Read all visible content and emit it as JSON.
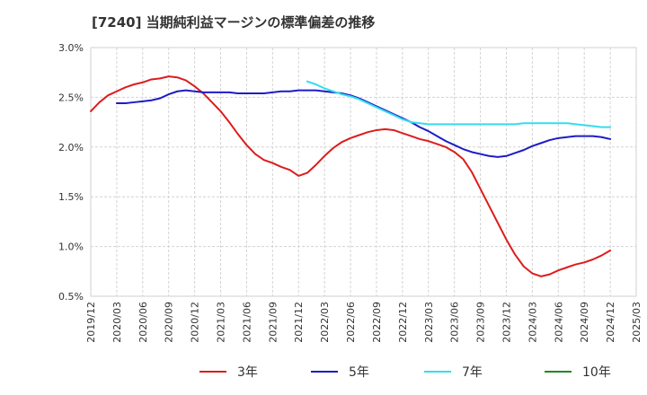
{
  "chart_data": {
    "type": "line",
    "title": "[7240]  当期純利益マージンの標準偏差の推移",
    "xlabel": "",
    "ylabel": "",
    "ylim": [
      0.5,
      3.0
    ],
    "y_ticks": [
      "0.5%",
      "1.0%",
      "1.5%",
      "2.0%",
      "2.5%",
      "3.0%"
    ],
    "y_tick_values": [
      0.5,
      1.0,
      1.5,
      2.0,
      2.5,
      3.0
    ],
    "x_ticks": [
      "2019/12",
      "2020/03",
      "2020/06",
      "2020/09",
      "2020/12",
      "2021/03",
      "2021/06",
      "2021/09",
      "2021/12",
      "2022/03",
      "2022/06",
      "2022/09",
      "2022/12",
      "2023/03",
      "2023/06",
      "2023/09",
      "2023/12",
      "2024/03",
      "2024/06",
      "2024/09",
      "2024/12",
      "2025/03"
    ],
    "grid": true,
    "legend_position": "bottom",
    "colors": {
      "3年": "#dd1c1c",
      "5年": "#1c1cc8",
      "7年": "#33ddee",
      "10年": "#228822"
    },
    "series": [
      {
        "name": "3年",
        "color": "#dd1c1c",
        "x": [
          "2019/12",
          "2020/01",
          "2020/02",
          "2020/03",
          "2020/04",
          "2020/05",
          "2020/06",
          "2020/07",
          "2020/08",
          "2020/09",
          "2020/10",
          "2020/11",
          "2020/12",
          "2021/01",
          "2021/02",
          "2021/03",
          "2021/04",
          "2021/05",
          "2021/06",
          "2021/07",
          "2021/08",
          "2021/09",
          "2021/10",
          "2021/11",
          "2021/12",
          "2022/01",
          "2022/02",
          "2022/03",
          "2022/04",
          "2022/05",
          "2022/06",
          "2022/07",
          "2022/08",
          "2022/09",
          "2022/10",
          "2022/11",
          "2022/12",
          "2023/01",
          "2023/02",
          "2023/03",
          "2023/04",
          "2023/05",
          "2023/06",
          "2023/07",
          "2023/08",
          "2023/09",
          "2023/10",
          "2023/11",
          "2023/12",
          "2024/01",
          "2024/02",
          "2024/03",
          "2024/04",
          "2024/05",
          "2024/06",
          "2024/07",
          "2024/08",
          "2024/09",
          "2024/10",
          "2024/11",
          "2024/12"
        ],
        "values": [
          2.36,
          2.45,
          2.52,
          2.56,
          2.6,
          2.63,
          2.65,
          2.68,
          2.69,
          2.71,
          2.7,
          2.67,
          2.61,
          2.54,
          2.45,
          2.36,
          2.25,
          2.13,
          2.02,
          1.93,
          1.87,
          1.84,
          1.8,
          1.77,
          1.71,
          1.74,
          1.82,
          1.91,
          1.99,
          2.05,
          2.09,
          2.12,
          2.15,
          2.17,
          2.18,
          2.17,
          2.14,
          2.11,
          2.08,
          2.06,
          2.03,
          2.0,
          1.95,
          1.88,
          1.75,
          1.58,
          1.41,
          1.24,
          1.07,
          0.92,
          0.8,
          0.73,
          0.7,
          0.72,
          0.76,
          0.79,
          0.82,
          0.84,
          0.87,
          0.91,
          0.96
        ]
      },
      {
        "name": "5年",
        "color": "#1c1cc8",
        "x": [
          "2020/03",
          "2020/04",
          "2020/05",
          "2020/06",
          "2020/07",
          "2020/08",
          "2020/09",
          "2020/10",
          "2020/11",
          "2020/12",
          "2021/01",
          "2021/02",
          "2021/03",
          "2021/04",
          "2021/05",
          "2021/06",
          "2021/07",
          "2021/08",
          "2021/09",
          "2021/10",
          "2021/11",
          "2021/12",
          "2022/01",
          "2022/02",
          "2022/03",
          "2022/04",
          "2022/05",
          "2022/06",
          "2022/07",
          "2022/08",
          "2022/09",
          "2022/10",
          "2022/11",
          "2022/12",
          "2023/01",
          "2023/02",
          "2023/03",
          "2023/04",
          "2023/05",
          "2023/06",
          "2023/07",
          "2023/08",
          "2023/09",
          "2023/10",
          "2023/11",
          "2023/12",
          "2024/01",
          "2024/02",
          "2024/03",
          "2024/04",
          "2024/05",
          "2024/06",
          "2024/07",
          "2024/08",
          "2024/09",
          "2024/10",
          "2024/11",
          "2024/12"
        ],
        "values": [
          2.44,
          2.44,
          2.45,
          2.46,
          2.47,
          2.49,
          2.53,
          2.56,
          2.57,
          2.56,
          2.55,
          2.55,
          2.55,
          2.55,
          2.54,
          2.54,
          2.54,
          2.54,
          2.55,
          2.56,
          2.56,
          2.57,
          2.57,
          2.57,
          2.56,
          2.55,
          2.54,
          2.52,
          2.49,
          2.45,
          2.41,
          2.37,
          2.33,
          2.29,
          2.25,
          2.2,
          2.16,
          2.11,
          2.06,
          2.02,
          1.98,
          1.95,
          1.93,
          1.91,
          1.9,
          1.91,
          1.94,
          1.97,
          2.01,
          2.04,
          2.07,
          2.09,
          2.1,
          2.11,
          2.11,
          2.11,
          2.1,
          2.08
        ]
      },
      {
        "name": "7年",
        "color": "#33ddee",
        "x": [
          "2022/01",
          "2022/02",
          "2022/03",
          "2022/04",
          "2022/05",
          "2022/06",
          "2022/07",
          "2022/08",
          "2022/09",
          "2022/10",
          "2022/11",
          "2022/12",
          "2023/01",
          "2023/02",
          "2023/03",
          "2023/04",
          "2023/05",
          "2023/06",
          "2023/07",
          "2023/08",
          "2023/09",
          "2023/10",
          "2023/11",
          "2023/12",
          "2024/01",
          "2024/02",
          "2024/03",
          "2024/04",
          "2024/05",
          "2024/06",
          "2024/07",
          "2024/08",
          "2024/09",
          "2024/10",
          "2024/11",
          "2024/12"
        ],
        "values": [
          2.66,
          2.63,
          2.59,
          2.56,
          2.53,
          2.51,
          2.48,
          2.44,
          2.4,
          2.36,
          2.32,
          2.28,
          2.25,
          2.24,
          2.23,
          2.23,
          2.23,
          2.23,
          2.23,
          2.23,
          2.23,
          2.23,
          2.23,
          2.23,
          2.23,
          2.24,
          2.24,
          2.24,
          2.24,
          2.24,
          2.24,
          2.23,
          2.22,
          2.21,
          2.2,
          2.2
        ]
      },
      {
        "name": "10年",
        "color": "#228822",
        "x": [],
        "values": []
      }
    ]
  }
}
